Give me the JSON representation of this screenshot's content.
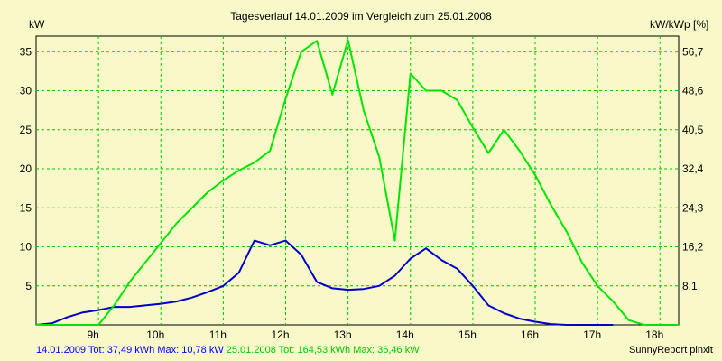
{
  "chart_data": {
    "type": "line",
    "title": "Tagesverlauf 14.01.2009 im Vergleich zum 25.01.2008",
    "ylabel": "kW",
    "y2label": "kW/kWp [%]",
    "ylim": [
      0,
      37
    ],
    "xlim": [
      8.0,
      18.3
    ],
    "yticks": [
      5,
      10,
      15,
      20,
      25,
      30,
      35
    ],
    "y2ticks": [
      "8,1",
      "16,2",
      "24,3",
      "32,4",
      "40,5",
      "48,6",
      "56,7"
    ],
    "xticks": [
      {
        "x": 9,
        "label": "9h"
      },
      {
        "x": 10,
        "label": "10h"
      },
      {
        "x": 11,
        "label": "11h"
      },
      {
        "x": 12,
        "label": "12h"
      },
      {
        "x": 13,
        "label": "13h"
      },
      {
        "x": 14,
        "label": "14h"
      },
      {
        "x": 15,
        "label": "15h"
      },
      {
        "x": 16,
        "label": "16h"
      },
      {
        "x": 17,
        "label": "17h"
      },
      {
        "x": 18,
        "label": "18h"
      }
    ],
    "grid": true,
    "series": [
      {
        "name": "14.01.2009",
        "color": "#0000c8",
        "x": [
          8.0,
          8.25,
          8.5,
          8.75,
          9.0,
          9.25,
          9.5,
          9.75,
          10.0,
          10.25,
          10.5,
          10.75,
          11.0,
          11.25,
          11.5,
          11.75,
          12.0,
          12.25,
          12.5,
          12.75,
          13.0,
          13.25,
          13.5,
          13.75,
          14.0,
          14.25,
          14.5,
          14.75,
          15.0,
          15.25,
          15.5,
          15.75,
          16.0,
          16.25,
          16.5,
          16.75,
          17.0,
          17.25
        ],
        "y": [
          0,
          0.2,
          1.0,
          1.6,
          1.9,
          2.3,
          2.3,
          2.5,
          2.7,
          3.0,
          3.5,
          4.2,
          5.0,
          6.7,
          10.8,
          10.2,
          10.8,
          9.0,
          5.5,
          4.7,
          4.5,
          4.6,
          5.0,
          6.3,
          8.5,
          9.8,
          8.3,
          7.2,
          5.0,
          2.5,
          1.5,
          0.8,
          0.4,
          0.1,
          0,
          0,
          0,
          0
        ]
      },
      {
        "name": "25.01.2008",
        "color": "#00e600",
        "x": [
          8.0,
          8.75,
          9.0,
          9.25,
          9.5,
          9.75,
          10.0,
          10.25,
          10.5,
          10.75,
          11.0,
          11.25,
          11.5,
          11.75,
          12.0,
          12.25,
          12.5,
          12.75,
          13.0,
          13.25,
          13.5,
          13.75,
          14.0,
          14.25,
          14.5,
          14.75,
          15.0,
          15.25,
          15.5,
          15.75,
          16.0,
          16.25,
          16.5,
          16.75,
          17.0,
          17.25,
          17.5,
          17.75,
          18.0,
          18.3
        ],
        "y": [
          0,
          0,
          0,
          2.5,
          5.5,
          8.0,
          10.5,
          13.0,
          15.0,
          17.0,
          18.5,
          19.8,
          20.8,
          22.3,
          29.0,
          35.0,
          36.4,
          29.5,
          36.5,
          27.5,
          21.5,
          10.8,
          32.2,
          30.0,
          30.0,
          28.8,
          25.3,
          22.0,
          25.0,
          22.3,
          19.2,
          15.4,
          12.0,
          8.0,
          5.0,
          3.0,
          0.6,
          0,
          0,
          0
        ]
      }
    ]
  },
  "footer": {
    "series1_text": "14.01.2009 Tot: 37,49 kWh Max: 10,78 kW",
    "series2_text": "25.01.2008 Tot: 164,53 kWh Max: 36,46 kW",
    "credit": "SunnyReport pinxit"
  }
}
